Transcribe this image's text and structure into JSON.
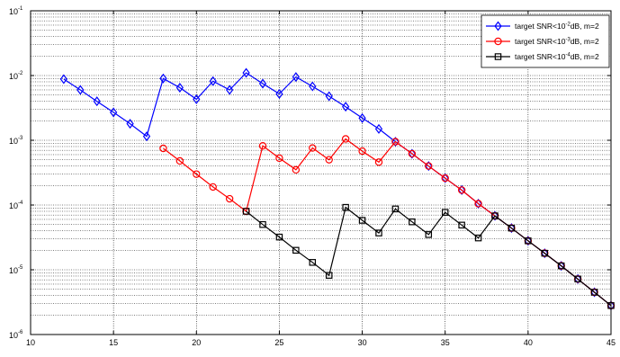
{
  "chart_data": {
    "type": "line",
    "title": "",
    "xlabel": "",
    "ylabel": "",
    "xlim": [
      10,
      45
    ],
    "ylim": [
      1e-06,
      0.1
    ],
    "yscale": "log",
    "grid": true,
    "legend_position": "top-right",
    "x_ticks": [
      10,
      15,
      20,
      25,
      30,
      35,
      40,
      45
    ],
    "x_tick_labels": [
      "10",
      "15",
      "20",
      "25",
      "30",
      "35",
      "40",
      "45"
    ],
    "y_ticks": [
      {
        "value": 1e-06,
        "base": "10",
        "exp": "-6"
      },
      {
        "value": 1e-05,
        "base": "10",
        "exp": "-5"
      },
      {
        "value": 0.0001,
        "base": "10",
        "exp": "-4"
      },
      {
        "value": 0.001,
        "base": "10",
        "exp": "-3"
      },
      {
        "value": 0.01,
        "base": "10",
        "exp": "-2"
      },
      {
        "value": 0.1,
        "base": "10",
        "exp": "-1"
      }
    ],
    "series": [
      {
        "name": "target SNR<10^-2dB, m=2",
        "legend": {
          "pre": "target SNR<10",
          "sup": "-2",
          "post": "dB, m=2"
        },
        "color": "#0000ff",
        "marker": "diamond",
        "x": [
          12,
          13,
          14,
          15,
          16,
          17,
          18,
          19,
          20,
          21,
          22,
          23,
          24,
          25,
          26,
          27,
          28,
          29,
          30,
          31,
          32,
          33,
          34,
          35,
          36,
          37,
          38,
          39,
          40,
          41,
          42,
          43,
          44,
          45
        ],
        "y": [
          0.0088,
          0.006,
          0.004,
          0.0027,
          0.0018,
          0.00115,
          0.009,
          0.0065,
          0.0043,
          0.0082,
          0.006,
          0.011,
          0.0075,
          0.0052,
          0.0095,
          0.0068,
          0.0048,
          0.0033,
          0.0022,
          0.0015,
          0.00095,
          0.00062,
          0.0004,
          0.00026,
          0.00017,
          0.000105,
          6.8e-05,
          4.4e-05,
          2.8e-05,
          1.8e-05,
          1.15e-05,
          7.2e-06,
          4.5e-06,
          2.8e-06
        ]
      },
      {
        "name": "target SNR<10^-3dB, m=2",
        "legend": {
          "pre": "target SNR<10",
          "sup": "-3",
          "post": "dB, m=2"
        },
        "color": "#ff0000",
        "marker": "circle",
        "x": [
          18,
          19,
          20,
          21,
          22,
          23,
          24,
          25,
          26,
          27,
          28,
          29,
          30,
          31,
          32,
          33,
          34,
          35,
          36,
          37,
          38,
          39,
          40,
          41,
          42,
          43,
          44,
          45
        ],
        "y": [
          0.00075,
          0.00048,
          0.0003,
          0.00019,
          0.000125,
          8e-05,
          0.00082,
          0.00053,
          0.00035,
          0.00076,
          0.0005,
          0.00105,
          0.00068,
          0.00046,
          0.00095,
          0.00062,
          0.0004,
          0.00026,
          0.00017,
          0.000105,
          6.8e-05,
          4.4e-05,
          2.8e-05,
          1.8e-05,
          1.15e-05,
          7.2e-06,
          4.5e-06,
          2.8e-06
        ]
      },
      {
        "name": "target SNR<10^-4dB, m=2",
        "legend": {
          "pre": "target SNR<10",
          "sup": "-4",
          "post": "dB, m=2"
        },
        "color": "#000000",
        "marker": "square",
        "x": [
          23,
          24,
          25,
          26,
          27,
          28,
          29,
          30,
          31,
          32,
          33,
          34,
          35,
          36,
          37,
          38,
          39,
          40,
          41,
          42,
          43,
          44,
          45
        ],
        "y": [
          8e-05,
          5e-05,
          3.2e-05,
          2e-05,
          1.3e-05,
          8.2e-06,
          9.2e-05,
          5.8e-05,
          3.7e-05,
          8.7e-05,
          5.5e-05,
          3.5e-05,
          7.7e-05,
          4.9e-05,
          3.1e-05,
          6.8e-05,
          4.4e-05,
          2.8e-05,
          1.8e-05,
          1.15e-05,
          7.2e-06,
          4.5e-06,
          2.8e-06
        ]
      }
    ]
  }
}
